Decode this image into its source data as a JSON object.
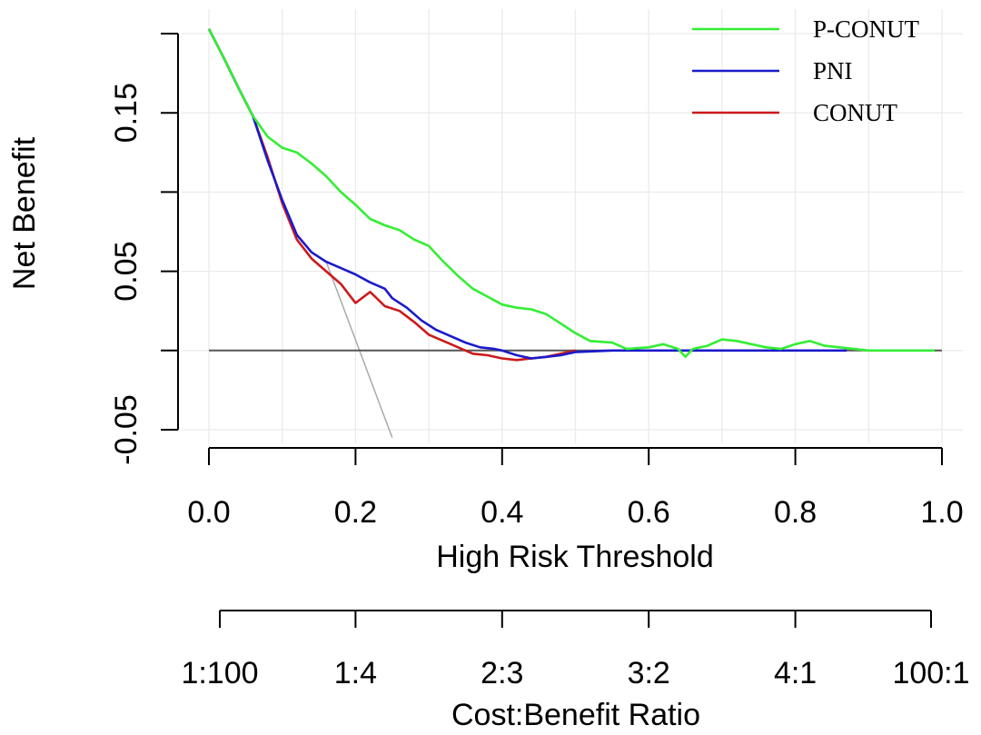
{
  "chart_data": {
    "type": "line",
    "xlabel": "High Risk Threshold",
    "ylabel": "Net Benefit",
    "secondary_xlabel": "Cost:Benefit Ratio",
    "xlim": [
      0,
      1
    ],
    "ylim": [
      -0.05,
      0.2
    ],
    "x_ticks": [
      {
        "v": 0.0,
        "label": "0.0"
      },
      {
        "v": 0.2,
        "label": "0.2"
      },
      {
        "v": 0.4,
        "label": "0.4"
      },
      {
        "v": 0.6,
        "label": "0.6"
      },
      {
        "v": 0.8,
        "label": "0.8"
      },
      {
        "v": 1.0,
        "label": "1.0"
      }
    ],
    "y_ticks": [
      {
        "v": 0.15,
        "label": "0.15"
      },
      {
        "v": 0.05,
        "label": "0.05"
      },
      {
        "v": -0.05,
        "label": "-0.05"
      }
    ],
    "y_minor_ticks": [
      0.2,
      0.1,
      0.0
    ],
    "cost_benefit_ticks": [
      "1:100",
      "1:4",
      "2:3",
      "3:2",
      "4:1",
      "100:1"
    ],
    "grid": true,
    "legend_position": "top-right",
    "series": [
      {
        "name": "P-CONUT",
        "color": "#33ee33",
        "x": [
          0.0,
          0.02,
          0.04,
          0.06,
          0.08,
          0.1,
          0.12,
          0.14,
          0.16,
          0.18,
          0.2,
          0.22,
          0.24,
          0.26,
          0.28,
          0.3,
          0.32,
          0.34,
          0.36,
          0.38,
          0.4,
          0.42,
          0.44,
          0.46,
          0.48,
          0.5,
          0.52,
          0.55,
          0.57,
          0.6,
          0.62,
          0.64,
          0.65,
          0.66,
          0.68,
          0.7,
          0.72,
          0.74,
          0.76,
          0.78,
          0.8,
          0.82,
          0.84,
          0.86,
          0.88,
          0.9,
          0.95,
          0.99
        ],
        "values": [
          0.203,
          0.185,
          0.166,
          0.148,
          0.135,
          0.128,
          0.125,
          0.118,
          0.11,
          0.1,
          0.092,
          0.083,
          0.079,
          0.076,
          0.07,
          0.066,
          0.056,
          0.047,
          0.039,
          0.034,
          0.029,
          0.027,
          0.026,
          0.023,
          0.017,
          0.011,
          0.006,
          0.005,
          0.001,
          0.002,
          0.004,
          0.001,
          -0.004,
          0.001,
          0.003,
          0.007,
          0.006,
          0.004,
          0.002,
          0.001,
          0.004,
          0.006,
          0.003,
          0.002,
          0.001,
          0.0,
          0.0,
          0.0
        ]
      },
      {
        "name": "PNI",
        "color": "#1a1acc",
        "x": [
          0.0,
          0.02,
          0.04,
          0.06,
          0.08,
          0.1,
          0.12,
          0.14,
          0.16,
          0.18,
          0.2,
          0.22,
          0.24,
          0.25,
          0.27,
          0.29,
          0.31,
          0.33,
          0.35,
          0.37,
          0.39,
          0.4,
          0.42,
          0.44,
          0.46,
          0.48,
          0.5,
          0.55,
          0.6,
          0.7,
          0.8,
          0.87
        ],
        "values": [
          0.203,
          0.185,
          0.166,
          0.148,
          0.12,
          0.095,
          0.073,
          0.062,
          0.056,
          0.052,
          0.048,
          0.043,
          0.039,
          0.033,
          0.027,
          0.019,
          0.013,
          0.009,
          0.005,
          0.002,
          0.001,
          0.0,
          -0.003,
          -0.005,
          -0.004,
          -0.003,
          -0.001,
          0.0,
          0.0,
          0.0,
          0.0,
          0.0
        ]
      },
      {
        "name": "CONUT",
        "color": "#cc1a1a",
        "x": [
          0.0,
          0.02,
          0.04,
          0.06,
          0.08,
          0.1,
          0.12,
          0.14,
          0.16,
          0.18,
          0.2,
          0.22,
          0.24,
          0.26,
          0.28,
          0.3,
          0.32,
          0.34,
          0.36,
          0.38,
          0.4,
          0.42,
          0.44,
          0.46,
          0.48,
          0.5
        ],
        "values": [
          0.203,
          0.185,
          0.166,
          0.148,
          0.122,
          0.093,
          0.07,
          0.058,
          0.05,
          0.042,
          0.03,
          0.037,
          0.028,
          0.025,
          0.018,
          0.01,
          0.006,
          0.002,
          -0.002,
          -0.003,
          -0.005,
          -0.006,
          -0.005,
          -0.004,
          -0.002,
          0.0
        ]
      }
    ],
    "reference_lines": [
      {
        "kind": "treat-all",
        "color": "#aaaaaa",
        "x": [
          0.16,
          0.25
        ],
        "values": [
          0.056,
          -0.055
        ]
      },
      {
        "kind": "treat-none",
        "color": "#555555",
        "x": [
          0.0,
          1.0
        ],
        "values": [
          0.0,
          0.0
        ]
      }
    ]
  }
}
